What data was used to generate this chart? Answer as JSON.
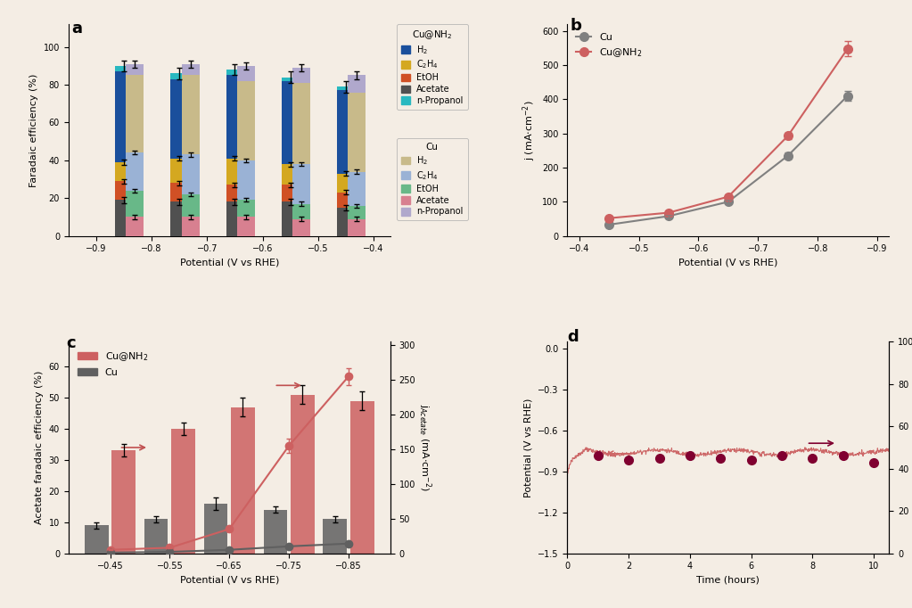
{
  "panel_a": {
    "potentials_nh2": [
      -0.85,
      -0.75,
      -0.65,
      -0.55,
      -0.45
    ],
    "potentials_cu": [
      -0.83,
      -0.73,
      -0.63,
      -0.53,
      -0.43
    ],
    "nh2_H2": [
      48,
      42,
      44,
      44,
      44
    ],
    "nh2_C2H4": [
      10,
      13,
      14,
      11,
      10
    ],
    "nh2_EtOH": [
      10,
      10,
      9,
      9,
      8
    ],
    "nh2_Acetate": [
      19,
      18,
      18,
      18,
      15
    ],
    "nh2_nProp": [
      3,
      3,
      3,
      2,
      2
    ],
    "cu_H2": [
      41,
      42,
      42,
      43,
      42
    ],
    "cu_C2H4": [
      20,
      21,
      21,
      21,
      18
    ],
    "cu_EtOH": [
      14,
      12,
      9,
      8,
      7
    ],
    "cu_Acetate": [
      10,
      10,
      10,
      9,
      9
    ],
    "cu_nProp": [
      6,
      6,
      8,
      8,
      9
    ],
    "nh2_top_err": [
      3,
      3,
      3,
      3,
      3
    ],
    "cu_top_err": [
      2,
      2,
      2,
      2,
      2
    ],
    "nh2_colors": [
      "#1a4f9c",
      "#d4a820",
      "#d05025",
      "#505050",
      "#28b8c0"
    ],
    "cu_colors": [
      "#c8ba8a",
      "#9ab2d5",
      "#68b888",
      "#d88090",
      "#b0a8cc"
    ],
    "bar_width": 0.032
  },
  "panel_b": {
    "potentials": [
      -0.45,
      -0.55,
      -0.65,
      -0.75,
      -0.85
    ],
    "cu_j": [
      33,
      58,
      100,
      235,
      410
    ],
    "nh2_j": [
      52,
      68,
      115,
      293,
      548
    ],
    "cu_err": [
      2,
      3,
      5,
      10,
      15
    ],
    "nh2_err": [
      3,
      3,
      5,
      10,
      22
    ],
    "cu_color": "#808080",
    "nh2_color": "#cd6060"
  },
  "panel_c": {
    "potentials": [
      -0.45,
      -0.55,
      -0.65,
      -0.75,
      -0.85
    ],
    "nh2_fe": [
      33,
      40,
      47,
      51,
      49
    ],
    "cu_fe": [
      9,
      11,
      16,
      14,
      11
    ],
    "nh2_fe_err": [
      2,
      2,
      3,
      3,
      3
    ],
    "cu_fe_err": [
      1,
      1,
      2,
      1,
      1
    ],
    "nh2_j": [
      5,
      8,
      35,
      155,
      255
    ],
    "cu_j": [
      1,
      2,
      5,
      10,
      14
    ],
    "nh2_j_err": [
      0.5,
      1,
      3,
      10,
      12
    ],
    "cu_j_err": [
      0.2,
      0.3,
      0.5,
      1,
      1.5
    ],
    "nh2_color": "#cd6060",
    "cu_color": "#606060",
    "bar_width": 0.038
  },
  "panel_d": {
    "fe_times": [
      1.0,
      2.0,
      3.0,
      4.0,
      5.0,
      6.0,
      7.0,
      8.0,
      9.0,
      10.0
    ],
    "fe_values": [
      46,
      44,
      45,
      46,
      45,
      44,
      46,
      45,
      46,
      43
    ],
    "potential_color": "#cd6868",
    "fe_color": "#800030"
  },
  "bg_color": "#f4ede4"
}
